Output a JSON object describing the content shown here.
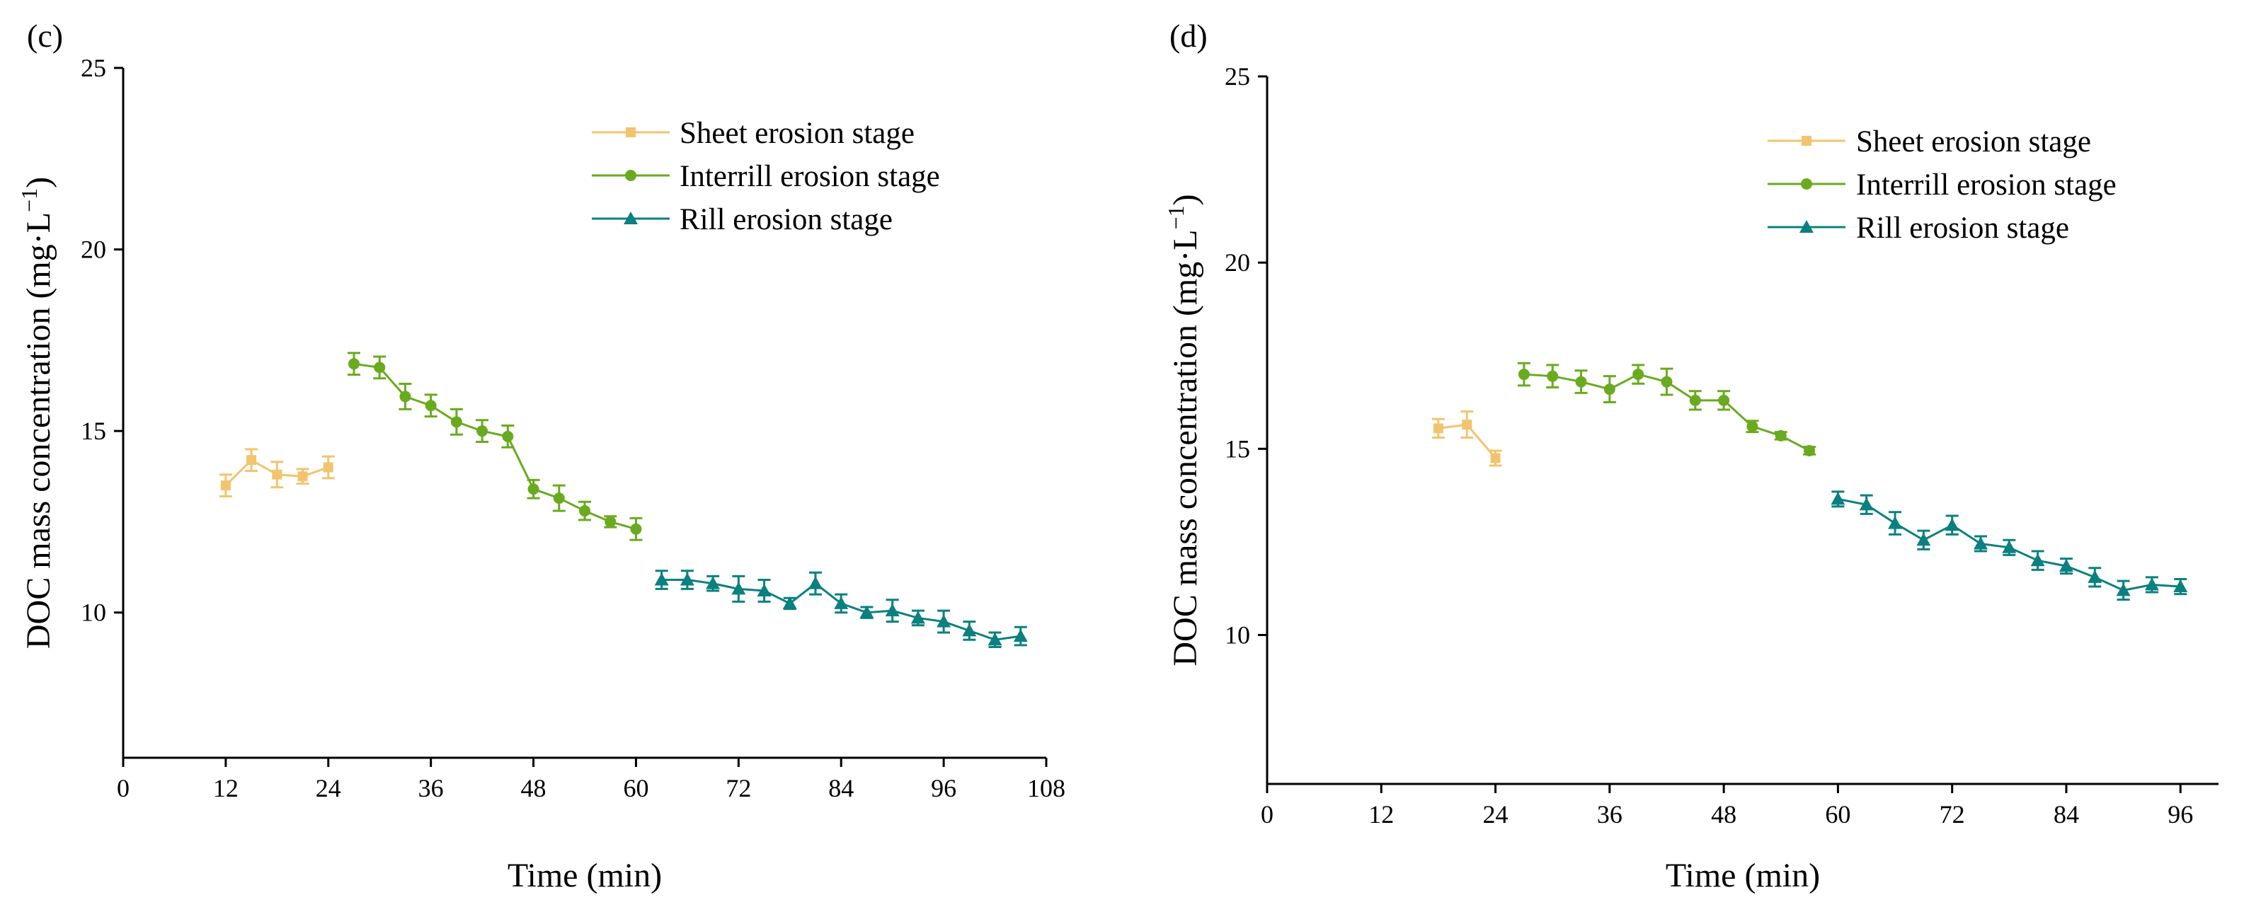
{
  "chart_data": [
    {
      "panel": "(c)",
      "type": "line",
      "xlabel": "Time (min)",
      "ylabel": "DOC mass concentration (mg·L",
      "ylabel_sup": "−1",
      "ylabel_close": ")",
      "xlim": [
        0,
        108
      ],
      "ylim": [
        6,
        25
      ],
      "xticks": [
        0,
        12,
        24,
        36,
        48,
        60,
        72,
        84,
        96,
        108
      ],
      "yticks": [
        10,
        15,
        20,
        25
      ],
      "legend_position": "top-right",
      "series": [
        {
          "name": "Sheet erosion stage",
          "color": "#f2c46e",
          "marker": "square",
          "x": [
            12,
            15,
            18,
            21,
            24
          ],
          "y": [
            13.5,
            14.2,
            13.8,
            13.75,
            14.0
          ],
          "err": [
            0.3,
            0.3,
            0.35,
            0.2,
            0.3
          ]
        },
        {
          "name": "Interrill erosion stage",
          "color": "#6aaa1f",
          "marker": "circle",
          "x": [
            27,
            30,
            33,
            36,
            39,
            42,
            45,
            48,
            51,
            54,
            57,
            60
          ],
          "y": [
            16.85,
            16.75,
            15.95,
            15.7,
            15.25,
            15.0,
            14.85,
            13.4,
            13.15,
            12.8,
            12.5,
            12.3
          ],
          "err": [
            0.3,
            0.3,
            0.35,
            0.3,
            0.35,
            0.3,
            0.3,
            0.25,
            0.35,
            0.25,
            0.15,
            0.3
          ]
        },
        {
          "name": "Rill erosion stage",
          "color": "#0b8080",
          "marker": "triangle",
          "x": [
            63,
            66,
            69,
            72,
            75,
            78,
            81,
            84,
            87,
            90,
            93,
            96,
            99,
            102,
            105
          ],
          "y": [
            10.9,
            10.9,
            10.8,
            10.65,
            10.6,
            10.25,
            10.8,
            10.25,
            10.0,
            10.05,
            9.85,
            9.75,
            9.5,
            9.25,
            9.35
          ],
          "err": [
            0.25,
            0.25,
            0.2,
            0.35,
            0.3,
            0.15,
            0.3,
            0.25,
            0.15,
            0.3,
            0.2,
            0.3,
            0.25,
            0.2,
            0.25
          ]
        }
      ]
    },
    {
      "panel": "(d)",
      "type": "line",
      "xlabel": "Time (min)",
      "ylabel": "DOC mass concentration (mg·L",
      "ylabel_sup": "−1",
      "ylabel_close": ")",
      "xlim": [
        0,
        100
      ],
      "ylim": [
        6,
        25
      ],
      "xticks": [
        0,
        12,
        24,
        36,
        48,
        60,
        72,
        84,
        96
      ],
      "yticks": [
        10,
        15,
        20,
        25
      ],
      "legend_position": "top-right",
      "series": [
        {
          "name": "Sheet erosion stage",
          "color": "#f2c46e",
          "marker": "square",
          "x": [
            18,
            21,
            24
          ],
          "y": [
            15.55,
            15.65,
            14.75
          ],
          "err": [
            0.25,
            0.35,
            0.2
          ]
        },
        {
          "name": "Interrill erosion stage",
          "color": "#6aaa1f",
          "marker": "circle",
          "x": [
            27,
            30,
            33,
            36,
            39,
            42,
            45,
            48,
            51,
            54,
            57
          ],
          "y": [
            17.0,
            16.95,
            16.8,
            16.6,
            17.0,
            16.8,
            16.3,
            16.3,
            15.6,
            15.35,
            14.95
          ],
          "err": [
            0.3,
            0.3,
            0.3,
            0.35,
            0.25,
            0.35,
            0.25,
            0.25,
            0.15,
            0.1,
            0.1
          ]
        },
        {
          "name": "Rill erosion stage",
          "color": "#0b8080",
          "marker": "triangle",
          "x": [
            60,
            63,
            66,
            69,
            72,
            75,
            78,
            81,
            84,
            87,
            90,
            93,
            96
          ],
          "y": [
            13.65,
            13.5,
            13.0,
            12.55,
            12.95,
            12.45,
            12.35,
            12.0,
            11.85,
            11.55,
            11.2,
            11.35,
            11.3
          ],
          "err": [
            0.2,
            0.25,
            0.3,
            0.25,
            0.25,
            0.2,
            0.2,
            0.25,
            0.2,
            0.25,
            0.25,
            0.2,
            0.2
          ]
        }
      ]
    }
  ]
}
